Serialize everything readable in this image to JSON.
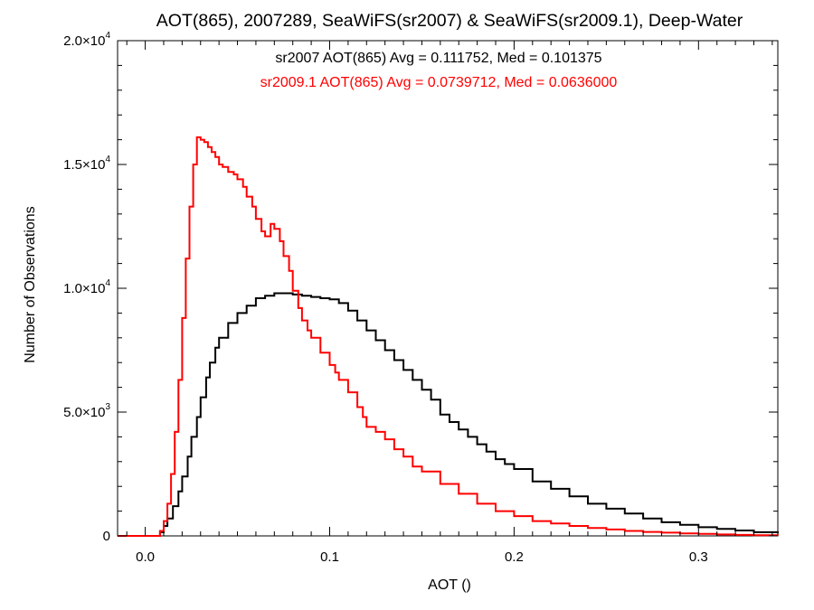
{
  "chart_data": {
    "type": "line",
    "title": "AOT(865), 2007289, SeaWiFS(sr2007) & SeaWiFS(sr2009.1), Deep-Water",
    "xlabel": "AOT ()",
    "ylabel": "Number of Observations",
    "xlim": [
      -0.015,
      0.343
    ],
    "ylim": [
      0,
      20000
    ],
    "x_ticks": [
      {
        "value": 0.0,
        "label": "0.0"
      },
      {
        "value": 0.1,
        "label": "0.1"
      },
      {
        "value": 0.2,
        "label": "0.2"
      },
      {
        "value": 0.3,
        "label": "0.3"
      }
    ],
    "y_ticks": [
      {
        "value": 0,
        "label": "0",
        "exp": ""
      },
      {
        "value": 5000,
        "label": "5.0×10",
        "exp": "3"
      },
      {
        "value": 10000,
        "label": "1.0×10",
        "exp": "4"
      },
      {
        "value": 15000,
        "label": "1.5×10",
        "exp": "4"
      },
      {
        "value": 20000,
        "label": "2.0×10",
        "exp": "4"
      }
    ],
    "annotations": [
      {
        "text": "sr2007 AOT(865) Avg = 0.111752, Med = 0.101375",
        "color": "#000000"
      },
      {
        "text": "sr2009.1 AOT(865) Avg = 0.0739712, Med = 0.0636000",
        "color": "#ff0000"
      }
    ],
    "series": [
      {
        "color": "#000000",
        "step": true,
        "x": [
          -0.015,
          0.005,
          0.008,
          0.01,
          0.012,
          0.015,
          0.018,
          0.02,
          0.023,
          0.025,
          0.028,
          0.03,
          0.033,
          0.035,
          0.038,
          0.04,
          0.045,
          0.05,
          0.055,
          0.06,
          0.065,
          0.07,
          0.075,
          0.08,
          0.085,
          0.09,
          0.095,
          0.1,
          0.105,
          0.11,
          0.115,
          0.12,
          0.125,
          0.13,
          0.135,
          0.14,
          0.145,
          0.15,
          0.155,
          0.16,
          0.165,
          0.17,
          0.175,
          0.18,
          0.185,
          0.19,
          0.195,
          0.2,
          0.21,
          0.22,
          0.23,
          0.24,
          0.25,
          0.26,
          0.27,
          0.28,
          0.29,
          0.3,
          0.31,
          0.32,
          0.33,
          0.343
        ],
        "y": [
          0,
          0,
          150,
          400,
          700,
          1200,
          1800,
          2400,
          3200,
          4000,
          4800,
          5600,
          6400,
          7000,
          7600,
          8000,
          8600,
          9000,
          9300,
          9600,
          9700,
          9800,
          9800,
          9750,
          9700,
          9650,
          9600,
          9550,
          9400,
          9100,
          8700,
          8300,
          7900,
          7500,
          7100,
          6700,
          6300,
          5900,
          5500,
          4900,
          4600,
          4300,
          4000,
          3700,
          3400,
          3100,
          2900,
          2700,
          2200,
          1900,
          1600,
          1300,
          1100,
          900,
          700,
          550,
          450,
          350,
          280,
          220,
          150,
          100
        ]
      },
      {
        "color": "#ff0000",
        "step": true,
        "x": [
          -0.015,
          0.005,
          0.008,
          0.01,
          0.012,
          0.014,
          0.016,
          0.018,
          0.02,
          0.022,
          0.024,
          0.026,
          0.028,
          0.03,
          0.032,
          0.034,
          0.036,
          0.038,
          0.04,
          0.042,
          0.045,
          0.048,
          0.05,
          0.053,
          0.055,
          0.058,
          0.06,
          0.063,
          0.065,
          0.068,
          0.07,
          0.073,
          0.075,
          0.078,
          0.08,
          0.083,
          0.085,
          0.088,
          0.09,
          0.095,
          0.1,
          0.103,
          0.105,
          0.11,
          0.115,
          0.118,
          0.12,
          0.125,
          0.13,
          0.135,
          0.14,
          0.145,
          0.15,
          0.16,
          0.17,
          0.18,
          0.19,
          0.2,
          0.21,
          0.22,
          0.23,
          0.24,
          0.25,
          0.26,
          0.27,
          0.28,
          0.29,
          0.3,
          0.31,
          0.32,
          0.33,
          0.343
        ],
        "y": [
          0,
          0,
          200,
          600,
          1300,
          2500,
          4200,
          6300,
          8800,
          11200,
          13300,
          15000,
          16100,
          16000,
          15900,
          15700,
          15500,
          15300,
          15000,
          14900,
          14700,
          14600,
          14400,
          14100,
          13700,
          13300,
          12800,
          12300,
          12100,
          12600,
          12400,
          11900,
          11300,
          10700,
          9900,
          9200,
          8700,
          8300,
          8000,
          7400,
          6900,
          6600,
          6300,
          5800,
          5200,
          4800,
          4400,
          4200,
          3900,
          3500,
          3200,
          2800,
          2600,
          2100,
          1700,
          1300,
          1000,
          800,
          600,
          500,
          400,
          320,
          260,
          200,
          160,
          130,
          100,
          80,
          60,
          40,
          30,
          20
        ]
      }
    ]
  }
}
